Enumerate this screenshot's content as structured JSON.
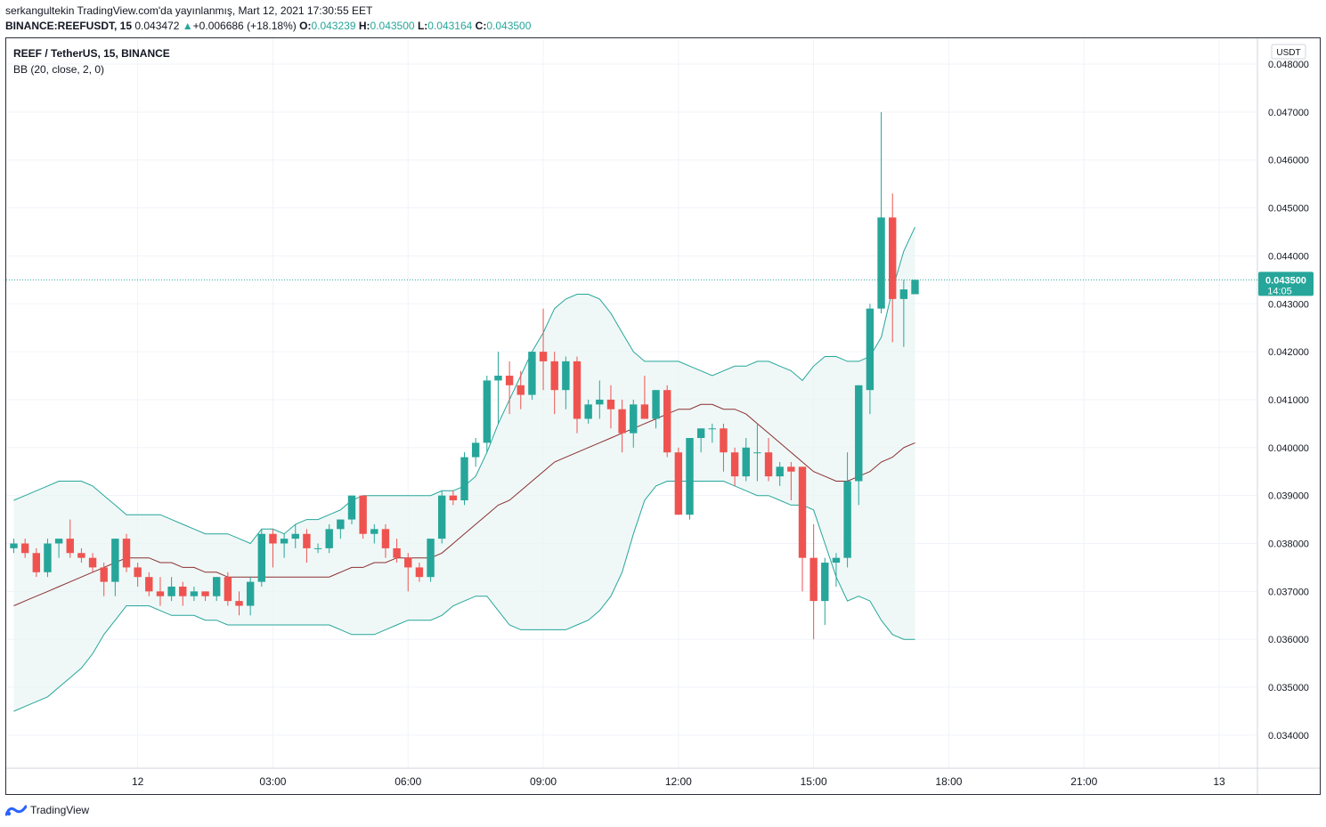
{
  "header": {
    "author_line": "serkangultekin TradingView.com'da yayınlanmış, Mart 12, 2021 17:30:55 EET",
    "symbol": "BINANCE:REEFUSDT, 15",
    "last": "0.043472",
    "change": "+0.006686 (+18.18%)",
    "o_label": "O:",
    "o_value": "0.043239",
    "h_label": "H:",
    "h_value": "0.043500",
    "l_label": "L:",
    "l_value": "0.043164",
    "c_label": "C:",
    "c_value": "0.043500"
  },
  "legend": {
    "title": "REEF / TetherUS, 15, BINANCE",
    "indicator": "BB (20, close, 2, 0)"
  },
  "axis": {
    "currency_badge": "USDT"
  },
  "price_tag": {
    "price": "0.043500",
    "countdown": "14:05"
  },
  "footer": {
    "brand": "TradingView"
  },
  "colors": {
    "up": "#26a69a",
    "down": "#ef5350",
    "band": "#26a69a",
    "band_fill": "#e8f5f3",
    "basis": "#8b2f2f",
    "grid": "#f0f3fa",
    "price_line": "#26a69a"
  },
  "chart_data": {
    "type": "candlestick",
    "interval_minutes": 15,
    "first_bar_time": "2021-03-11 21:15",
    "ylim": [
      0.0334,
      0.0481
    ],
    "y_ticks": [
      "0.048000",
      "0.047000",
      "0.046000",
      "0.045000",
      "0.044000",
      "0.043000",
      "0.042000",
      "0.041000",
      "0.040000",
      "0.039000",
      "0.038000",
      "0.037000",
      "0.036000",
      "0.035000",
      "0.034000"
    ],
    "x_ticks": [
      {
        "label": "12",
        "time": "2021-03-12 00:00"
      },
      {
        "label": "03:00",
        "time": "2021-03-12 03:00"
      },
      {
        "label": "06:00",
        "time": "2021-03-12 06:00"
      },
      {
        "label": "09:00",
        "time": "2021-03-12 09:00"
      },
      {
        "label": "12:00",
        "time": "2021-03-12 12:00"
      },
      {
        "label": "15:00",
        "time": "2021-03-12 15:00"
      },
      {
        "label": "18:00",
        "time": "2021-03-12 18:00"
      },
      {
        "label": "21:00",
        "time": "2021-03-12 21:00"
      },
      {
        "label": "13",
        "time": "2021-03-13 00:00"
      }
    ],
    "candles": [
      [
        0.0379,
        0.0381,
        0.0378,
        0.038
      ],
      [
        0.038,
        0.0381,
        0.0377,
        0.0378
      ],
      [
        0.0378,
        0.0379,
        0.0373,
        0.0374
      ],
      [
        0.0374,
        0.0381,
        0.0373,
        0.038
      ],
      [
        0.038,
        0.0381,
        0.0377,
        0.0381
      ],
      [
        0.0381,
        0.0385,
        0.0377,
        0.0378
      ],
      [
        0.0378,
        0.0379,
        0.0376,
        0.0377
      ],
      [
        0.0377,
        0.0378,
        0.0374,
        0.0375
      ],
      [
        0.0375,
        0.0376,
        0.0369,
        0.0372
      ],
      [
        0.0372,
        0.0381,
        0.0369,
        0.0381
      ],
      [
        0.0381,
        0.0382,
        0.0374,
        0.0375
      ],
      [
        0.0375,
        0.0376,
        0.0371,
        0.0373
      ],
      [
        0.0373,
        0.0374,
        0.0369,
        0.037
      ],
      [
        0.037,
        0.0373,
        0.0367,
        0.0369
      ],
      [
        0.0369,
        0.0373,
        0.0368,
        0.0371
      ],
      [
        0.0371,
        0.0372,
        0.0367,
        0.0369
      ],
      [
        0.0369,
        0.0371,
        0.0368,
        0.037
      ],
      [
        0.037,
        0.037,
        0.0368,
        0.0369
      ],
      [
        0.0369,
        0.0373,
        0.0368,
        0.0373
      ],
      [
        0.0373,
        0.0374,
        0.0367,
        0.0368
      ],
      [
        0.0368,
        0.037,
        0.0365,
        0.0367
      ],
      [
        0.0367,
        0.0373,
        0.0365,
        0.0372
      ],
      [
        0.0372,
        0.0383,
        0.0371,
        0.0382
      ],
      [
        0.0382,
        0.0383,
        0.0375,
        0.038
      ],
      [
        0.038,
        0.0382,
        0.0377,
        0.0381
      ],
      [
        0.0381,
        0.0384,
        0.0379,
        0.0382
      ],
      [
        0.0382,
        0.0383,
        0.0376,
        0.0379
      ],
      [
        0.0379,
        0.038,
        0.0378,
        0.0379
      ],
      [
        0.0379,
        0.0384,
        0.0378,
        0.0383
      ],
      [
        0.0383,
        0.0385,
        0.0381,
        0.0385
      ],
      [
        0.0385,
        0.039,
        0.0384,
        0.039
      ],
      [
        0.039,
        0.039,
        0.0381,
        0.0382
      ],
      [
        0.0382,
        0.0384,
        0.038,
        0.0383
      ],
      [
        0.0383,
        0.0384,
        0.0377,
        0.0379
      ],
      [
        0.0379,
        0.0381,
        0.0376,
        0.0377
      ],
      [
        0.0377,
        0.0378,
        0.037,
        0.0375
      ],
      [
        0.0375,
        0.0376,
        0.0372,
        0.0373
      ],
      [
        0.0373,
        0.0381,
        0.0372,
        0.0381
      ],
      [
        0.0381,
        0.0391,
        0.038,
        0.039
      ],
      [
        0.039,
        0.0391,
        0.0388,
        0.0389
      ],
      [
        0.0389,
        0.0399,
        0.0388,
        0.0398
      ],
      [
        0.0398,
        0.0402,
        0.0396,
        0.0401
      ],
      [
        0.0401,
        0.0415,
        0.0399,
        0.0414
      ],
      [
        0.0414,
        0.042,
        0.0405,
        0.0415
      ],
      [
        0.0415,
        0.0418,
        0.0407,
        0.0413
      ],
      [
        0.0413,
        0.0416,
        0.0408,
        0.0411
      ],
      [
        0.0411,
        0.042,
        0.041,
        0.042
      ],
      [
        0.042,
        0.0429,
        0.0412,
        0.0418
      ],
      [
        0.0418,
        0.042,
        0.0407,
        0.0412
      ],
      [
        0.0412,
        0.0419,
        0.0408,
        0.0418
      ],
      [
        0.0418,
        0.0419,
        0.0403,
        0.0406
      ],
      [
        0.0406,
        0.041,
        0.0405,
        0.0409
      ],
      [
        0.0409,
        0.0414,
        0.0406,
        0.041
      ],
      [
        0.041,
        0.0413,
        0.0404,
        0.0408
      ],
      [
        0.0408,
        0.041,
        0.0399,
        0.0403
      ],
      [
        0.0403,
        0.041,
        0.04,
        0.0409
      ],
      [
        0.0409,
        0.0415,
        0.0406,
        0.0406
      ],
      [
        0.0406,
        0.0412,
        0.0404,
        0.0412
      ],
      [
        0.0412,
        0.0413,
        0.0398,
        0.0399
      ],
      [
        0.0399,
        0.04,
        0.0386,
        0.0386
      ],
      [
        0.0386,
        0.0402,
        0.0385,
        0.0402
      ],
      [
        0.0402,
        0.0404,
        0.0399,
        0.0404
      ],
      [
        0.0404,
        0.0405,
        0.0401,
        0.0404
      ],
      [
        0.0404,
        0.0405,
        0.0395,
        0.0399
      ],
      [
        0.0399,
        0.04,
        0.0392,
        0.0394
      ],
      [
        0.0394,
        0.0402,
        0.0393,
        0.04
      ],
      [
        0.0399,
        0.0405,
        0.0393,
        0.0399
      ],
      [
        0.0399,
        0.0402,
        0.0393,
        0.0394
      ],
      [
        0.0394,
        0.0397,
        0.0392,
        0.0396
      ],
      [
        0.0396,
        0.0397,
        0.0389,
        0.0395
      ],
      [
        0.0396,
        0.0396,
        0.037,
        0.0377
      ],
      [
        0.0377,
        0.0384,
        0.036,
        0.0368
      ],
      [
        0.0368,
        0.0377,
        0.0363,
        0.0376
      ],
      [
        0.0376,
        0.0378,
        0.0371,
        0.0377
      ],
      [
        0.0377,
        0.0399,
        0.0375,
        0.0393
      ],
      [
        0.0393,
        0.0413,
        0.0388,
        0.0413
      ],
      [
        0.0412,
        0.043,
        0.0407,
        0.0429
      ],
      [
        0.0429,
        0.047,
        0.0428,
        0.0448
      ],
      [
        0.0448,
        0.0453,
        0.0422,
        0.0431
      ],
      [
        0.0431,
        0.0435,
        0.0421,
        0.0433
      ],
      [
        0.0432,
        0.0435,
        0.0432,
        0.0435
      ]
    ],
    "bb_upper": [
      0.0389,
      0.039,
      0.0391,
      0.0392,
      0.0393,
      0.0393,
      0.0393,
      0.0392,
      0.039,
      0.0388,
      0.0386,
      0.0386,
      0.0386,
      0.0386,
      0.0385,
      0.0384,
      0.0383,
      0.0382,
      0.0382,
      0.0382,
      0.0381,
      0.038,
      0.0383,
      0.0383,
      0.0382,
      0.0384,
      0.0385,
      0.0385,
      0.0386,
      0.0387,
      0.0389,
      0.039,
      0.039,
      0.039,
      0.039,
      0.039,
      0.039,
      0.039,
      0.0391,
      0.0391,
      0.0392,
      0.0394,
      0.0399,
      0.0405,
      0.041,
      0.0415,
      0.042,
      0.0424,
      0.0429,
      0.0431,
      0.0432,
      0.0432,
      0.0431,
      0.0428,
      0.0424,
      0.042,
      0.0418,
      0.0418,
      0.0418,
      0.0418,
      0.0417,
      0.0416,
      0.0415,
      0.0416,
      0.0417,
      0.0417,
      0.0418,
      0.0418,
      0.0417,
      0.0416,
      0.0414,
      0.0417,
      0.0419,
      0.0419,
      0.0418,
      0.0418,
      0.0419,
      0.0423,
      0.0433,
      0.0441,
      0.0446
    ],
    "bb_basis": [
      0.0367,
      0.0368,
      0.0369,
      0.037,
      0.0371,
      0.0372,
      0.0373,
      0.0374,
      0.0375,
      0.0376,
      0.0377,
      0.0377,
      0.0377,
      0.0376,
      0.0376,
      0.0375,
      0.0375,
      0.0374,
      0.0374,
      0.0373,
      0.0373,
      0.0373,
      0.0373,
      0.0373,
      0.0373,
      0.0373,
      0.0373,
      0.0373,
      0.0373,
      0.0374,
      0.0375,
      0.0375,
      0.0376,
      0.0376,
      0.0377,
      0.0377,
      0.0377,
      0.0377,
      0.0378,
      0.038,
      0.0382,
      0.0384,
      0.0386,
      0.0388,
      0.0389,
      0.0391,
      0.0393,
      0.0395,
      0.0397,
      0.0398,
      0.0399,
      0.04,
      0.0401,
      0.0402,
      0.0403,
      0.0404,
      0.0405,
      0.0406,
      0.0407,
      0.0408,
      0.0408,
      0.0409,
      0.0409,
      0.0408,
      0.0408,
      0.0407,
      0.0405,
      0.0403,
      0.0401,
      0.0399,
      0.0397,
      0.0395,
      0.0394,
      0.0393,
      0.0393,
      0.0394,
      0.0395,
      0.0397,
      0.0398,
      0.04,
      0.0401
    ],
    "bb_lower": [
      0.0345,
      0.0346,
      0.0347,
      0.0348,
      0.035,
      0.0352,
      0.0354,
      0.0357,
      0.0361,
      0.0364,
      0.0367,
      0.0367,
      0.0367,
      0.0366,
      0.0365,
      0.0365,
      0.0365,
      0.0364,
      0.0364,
      0.0363,
      0.0363,
      0.0363,
      0.0363,
      0.0363,
      0.0363,
      0.0363,
      0.0363,
      0.0363,
      0.0363,
      0.0362,
      0.0361,
      0.0361,
      0.0361,
      0.0362,
      0.0363,
      0.0364,
      0.0364,
      0.0364,
      0.0365,
      0.0367,
      0.0368,
      0.0369,
      0.0369,
      0.0366,
      0.0363,
      0.0362,
      0.0362,
      0.0362,
      0.0362,
      0.0362,
      0.0363,
      0.0364,
      0.0366,
      0.0369,
      0.0374,
      0.0382,
      0.0389,
      0.0392,
      0.0393,
      0.0393,
      0.0393,
      0.0393,
      0.0393,
      0.0393,
      0.0392,
      0.0391,
      0.039,
      0.039,
      0.0389,
      0.0388,
      0.0388,
      0.0387,
      0.038,
      0.0373,
      0.0368,
      0.0369,
      0.0368,
      0.0364,
      0.0361,
      0.036,
      0.036
    ],
    "last_price": 0.0435
  }
}
